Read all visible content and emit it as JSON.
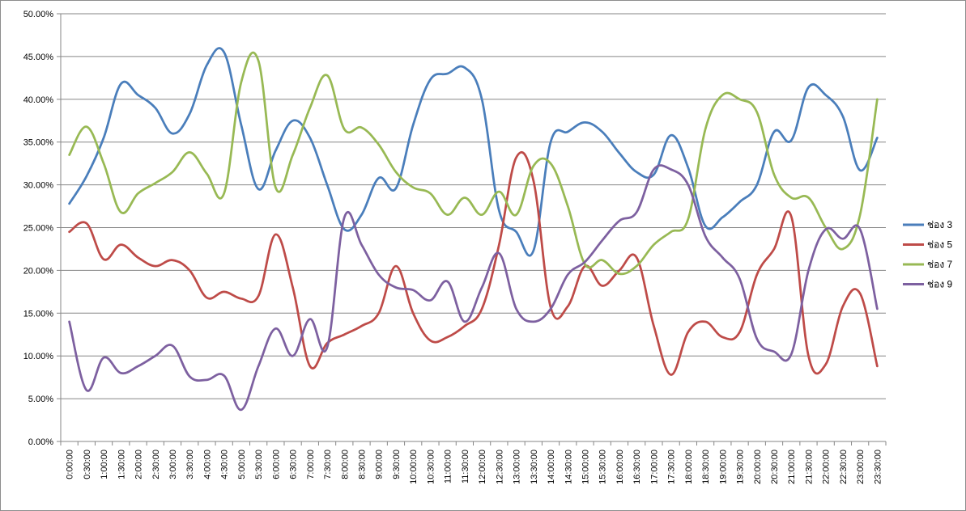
{
  "chart_data": {
    "type": "line",
    "title": "",
    "xlabel": "",
    "ylabel": "",
    "ylim": [
      0,
      0.5
    ],
    "grid": true,
    "legend": "right",
    "y_ticks": [
      "0.00%",
      "5.00%",
      "10.00%",
      "15.00%",
      "20.00%",
      "25.00%",
      "30.00%",
      "35.00%",
      "40.00%",
      "45.00%",
      "50.00%"
    ],
    "x": [
      "0:00:00",
      "0:30:00",
      "1:00:00",
      "1:30:00",
      "2:00:00",
      "2:30:00",
      "3:00:00",
      "3:30:00",
      "4:00:00",
      "4:30:00",
      "5:00:00",
      "5:30:00",
      "6:00:00",
      "6:30:00",
      "7:00:00",
      "7:30:00",
      "8:00:00",
      "8:30:00",
      "9:00:00",
      "9:30:00",
      "10:00:00",
      "10:30:00",
      "11:00:00",
      "11:30:00",
      "12:00:00",
      "12:30:00",
      "13:00:00",
      "13:30:00",
      "14:00:00",
      "14:30:00",
      "15:00:00",
      "15:30:00",
      "16:00:00",
      "16:30:00",
      "17:00:00",
      "17:30:00",
      "18:00:00",
      "18:30:00",
      "19:00:00",
      "19:30:00",
      "20:00:00",
      "20:30:00",
      "21:00:00",
      "21:30:00",
      "22:00:00",
      "22:30:00",
      "23:00:00",
      "23:30:00"
    ],
    "series": [
      {
        "name": "ช่อง 3",
        "color": "#4a7ebb",
        "values": [
          0.278,
          0.31,
          0.355,
          0.418,
          0.405,
          0.39,
          0.36,
          0.383,
          0.44,
          0.455,
          0.37,
          0.295,
          0.34,
          0.375,
          0.355,
          0.3,
          0.248,
          0.265,
          0.308,
          0.296,
          0.37,
          0.423,
          0.43,
          0.437,
          0.4,
          0.27,
          0.245,
          0.223,
          0.35,
          0.362,
          0.373,
          0.362,
          0.337,
          0.315,
          0.312,
          0.358,
          0.32,
          0.252,
          0.262,
          0.28,
          0.3,
          0.362,
          0.352,
          0.414,
          0.405,
          0.38,
          0.317,
          0.355
        ]
      },
      {
        "name": "ช่อง 5",
        "color": "#be4b48",
        "values": [
          0.245,
          0.255,
          0.213,
          0.23,
          0.215,
          0.205,
          0.212,
          0.2,
          0.168,
          0.175,
          0.167,
          0.17,
          0.242,
          0.18,
          0.088,
          0.115,
          0.125,
          0.135,
          0.15,
          0.205,
          0.15,
          0.118,
          0.122,
          0.135,
          0.155,
          0.23,
          0.332,
          0.305,
          0.157,
          0.158,
          0.205,
          0.182,
          0.2,
          0.215,
          0.135,
          0.078,
          0.128,
          0.14,
          0.122,
          0.128,
          0.195,
          0.225,
          0.263,
          0.1,
          0.09,
          0.158,
          0.173,
          0.088
        ]
      },
      {
        "name": "ช่อง 7",
        "color": "#98b954",
        "values": [
          0.335,
          0.368,
          0.325,
          0.268,
          0.29,
          0.302,
          0.315,
          0.338,
          0.313,
          0.29,
          0.42,
          0.445,
          0.297,
          0.335,
          0.39,
          0.428,
          0.365,
          0.367,
          0.347,
          0.315,
          0.297,
          0.29,
          0.265,
          0.285,
          0.265,
          0.292,
          0.265,
          0.322,
          0.325,
          0.275,
          0.207,
          0.212,
          0.196,
          0.205,
          0.23,
          0.245,
          0.26,
          0.365,
          0.405,
          0.4,
          0.385,
          0.312,
          0.285,
          0.285,
          0.25,
          0.225,
          0.265,
          0.4
        ]
      },
      {
        "name": "ช่อง 9",
        "color": "#7d60a0",
        "values": [
          0.14,
          0.06,
          0.098,
          0.08,
          0.088,
          0.1,
          0.112,
          0.076,
          0.072,
          0.077,
          0.037,
          0.088,
          0.132,
          0.1,
          0.143,
          0.11,
          0.262,
          0.23,
          0.195,
          0.18,
          0.177,
          0.165,
          0.187,
          0.14,
          0.18,
          0.22,
          0.155,
          0.14,
          0.155,
          0.195,
          0.21,
          0.235,
          0.258,
          0.268,
          0.318,
          0.318,
          0.3,
          0.24,
          0.215,
          0.19,
          0.12,
          0.105,
          0.102,
          0.2,
          0.248,
          0.237,
          0.248,
          0.155
        ]
      }
    ]
  }
}
